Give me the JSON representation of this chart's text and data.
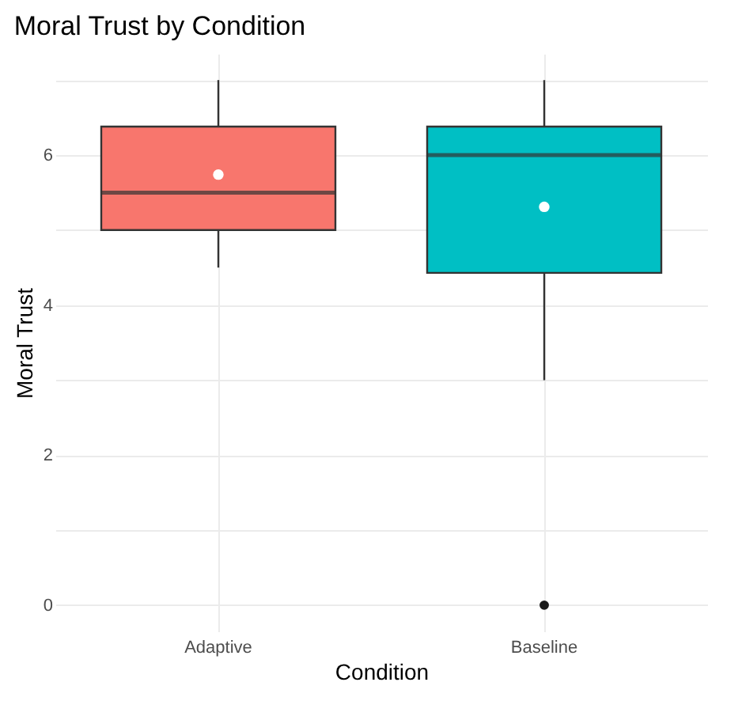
{
  "chart_data": {
    "type": "box",
    "title": "Moral Trust by Condition",
    "xlabel": "Condition",
    "ylabel": "Moral Trust",
    "categories": [
      "Adaptive",
      "Baseline"
    ],
    "colors": [
      "#f8766d",
      "#00bfc4"
    ],
    "boxes": [
      {
        "low": 4.5,
        "q1": 5.0,
        "median": 5.5,
        "q3": 6.38,
        "high": 7,
        "mean": 5.74
      },
      {
        "low": 3,
        "q1": 4.43,
        "median": 6,
        "q3": 6.38,
        "high": 7,
        "mean": 5.31,
        "outliers": [
          0
        ]
      }
    ],
    "ylim": [
      -0.35,
      7.35
    ],
    "yticks": [
      0,
      {
        "value": 1,
        "label": null
      },
      2,
      {
        "value": 3,
        "label": null
      },
      4,
      {
        "value": 5,
        "label": null
      },
      6,
      {
        "value": 7,
        "label": null
      }
    ],
    "grid": true
  }
}
